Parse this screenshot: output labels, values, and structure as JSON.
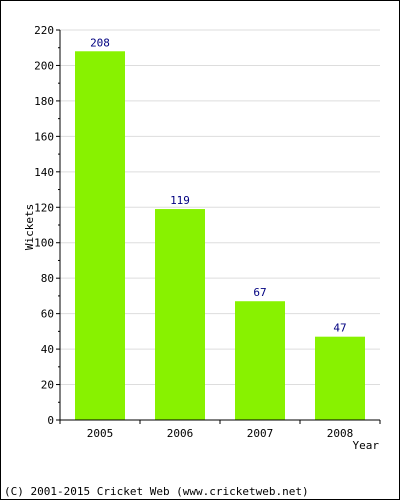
{
  "chart_data": {
    "type": "bar",
    "categories": [
      "2005",
      "2006",
      "2007",
      "2008"
    ],
    "values": [
      208,
      119,
      67,
      47
    ],
    "data_labels": [
      "208",
      "119",
      "67",
      "47"
    ],
    "title": "",
    "xlabel": "Year",
    "ylabel": "Wickets",
    "ylim": [
      0,
      220
    ],
    "yticks": [
      0,
      20,
      40,
      60,
      80,
      100,
      120,
      140,
      160,
      180,
      200,
      220
    ],
    "ytick_labels": [
      "0",
      "20",
      "40",
      "60",
      "80",
      "100",
      "120",
      "140",
      "160",
      "180",
      "200",
      "220"
    ],
    "grid": true,
    "legend": "none",
    "bar_color": "#88f200",
    "label_color": "#000080",
    "grid_color": "#dddddd"
  },
  "footer": {
    "copyright": "(C) 2001-2015 Cricket Web (www.cricketweb.net)"
  }
}
